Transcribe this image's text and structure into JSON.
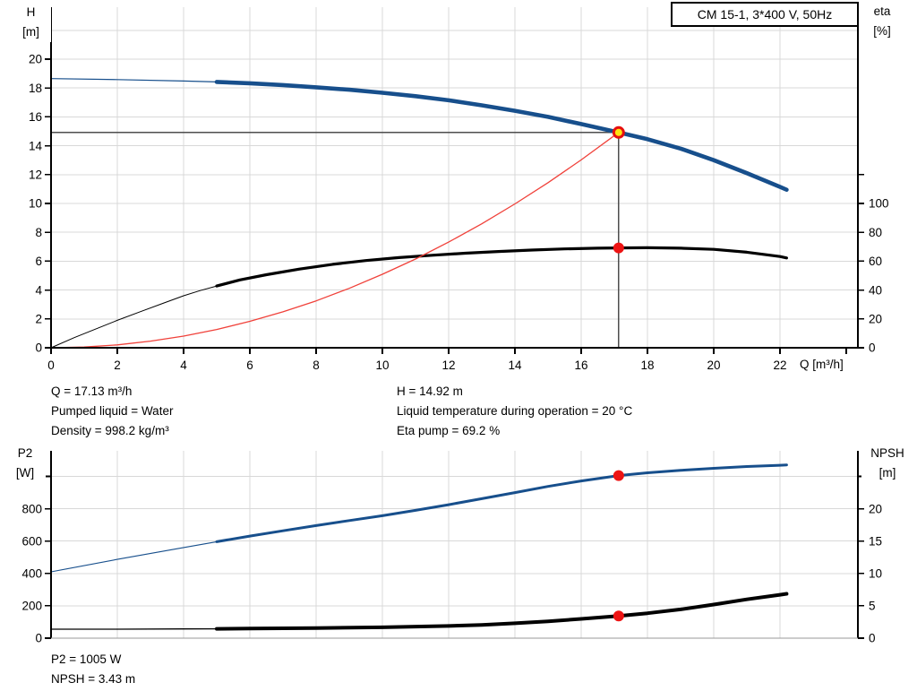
{
  "title_box": {
    "label": "CM 15-1, 3*400 V, 50Hz"
  },
  "axis_corner_labels": {
    "h": {
      "line1": "H",
      "line2": "[m]"
    },
    "eta": {
      "line1": "eta",
      "line2": "[%]"
    },
    "p2": {
      "line1": "P2",
      "line2": "[W]"
    },
    "npsh": {
      "line1": "NPSH",
      "line2": "[m]"
    },
    "q": "Q [m³/h]"
  },
  "annotations": {
    "q_line": "Q = 17.13 m³/h",
    "h_line": "H = 14.92 m",
    "pumped_liquid": "Pumped liquid = Water",
    "liquid_temp": "Liquid temperature during operation = 20 °C",
    "density": "Density = 998.2 kg/m³",
    "eta_pump": "Eta pump = 69.2 %",
    "p2_line": "P2 = 1005 W",
    "npsh_line": "NPSH = 3.43 m"
  },
  "colors": {
    "pump_blue": "#174f8c",
    "curve_black": "#000000",
    "system_red": "#f0413a",
    "marker_red": "#ed1414",
    "duty_ring_red": "#e60f0f",
    "duty_fill_yellow": "#ffe311",
    "grid": "#d8d8d8",
    "ref_line": "#4e4e4e",
    "axis_black": "#000000",
    "axis_gray": "#9a9a9a"
  },
  "duty_point": {
    "q": 17.13,
    "h": 14.92,
    "eta": 69.2,
    "p2": 1005,
    "npsh": 3.43
  },
  "chart_data": [
    {
      "id": "hq",
      "type": "line",
      "title": "CM 15-1, 3*400 V, 50Hz",
      "x": {
        "label": "Q [m³/h]",
        "lim": [
          0,
          24.35
        ],
        "ticks": [
          0,
          2,
          4,
          6,
          8,
          10,
          12,
          14,
          16,
          18,
          20,
          22
        ],
        "extra_ticks": [
          24
        ],
        "grid": [
          2,
          4,
          6,
          8,
          10,
          12,
          14,
          16,
          18,
          20,
          22
        ],
        "show_tick_labels": true,
        "axis_color": "axis_black"
      },
      "y_left": {
        "label": "H [m]",
        "lim": [
          0,
          23.6
        ],
        "ticks": [
          0,
          2,
          4,
          6,
          8,
          10,
          12,
          14,
          16,
          18,
          20
        ],
        "extra_ticks": [
          22
        ],
        "grid": [
          2,
          4,
          6,
          8,
          10,
          12,
          14,
          16,
          18,
          20,
          22
        ]
      },
      "y_right": {
        "label": "eta [%]",
        "ticks": [
          0,
          20,
          40,
          60,
          80,
          100
        ],
        "extra_ticks": [
          120
        ],
        "to_left_factor": 0.1
      },
      "series": [
        {
          "name": "efficiency-curve",
          "axis": "right",
          "color": "curve_black",
          "width": 3.2,
          "thin_width": 1,
          "thick_from": 5,
          "points": [
            [
              0,
              0
            ],
            [
              0.7,
              7
            ],
            [
              1.4,
              13.5
            ],
            [
              2,
              19
            ],
            [
              2.7,
              25
            ],
            [
              3.4,
              31
            ],
            [
              4,
              36
            ],
            [
              4.5,
              39.6
            ],
            [
              5,
              42.8
            ],
            [
              5.7,
              47
            ],
            [
              6.5,
              50.6
            ],
            [
              7.5,
              54.5
            ],
            [
              8.5,
              57.8
            ],
            [
              9.5,
              60.4
            ],
            [
              10.5,
              62.5
            ],
            [
              11.5,
              64.1
            ],
            [
              12.5,
              65.5
            ],
            [
              13.5,
              66.7
            ],
            [
              14.5,
              67.7
            ],
            [
              15.5,
              68.5
            ],
            [
              16.5,
              69.0
            ],
            [
              17.13,
              69.2
            ],
            [
              18,
              69.3
            ],
            [
              19,
              69.0
            ],
            [
              20,
              68.2
            ],
            [
              21,
              66.2
            ],
            [
              22,
              63.2
            ],
            [
              22.2,
              62.2
            ]
          ]
        },
        {
          "name": "system-curve",
          "axis": "left",
          "color": "system_red",
          "width": 1.3,
          "thin_width": 1.3,
          "thick_from": null,
          "points": [
            [
              0,
              0
            ],
            [
              1,
              0.05
            ],
            [
              2,
              0.2
            ],
            [
              3,
              0.46
            ],
            [
              4,
              0.81
            ],
            [
              5,
              1.27
            ],
            [
              6,
              1.83
            ],
            [
              7,
              2.49
            ],
            [
              8,
              3.25
            ],
            [
              9,
              4.12
            ],
            [
              10,
              5.09
            ],
            [
              11,
              6.15
            ],
            [
              12,
              7.32
            ],
            [
              13,
              8.59
            ],
            [
              14,
              9.97
            ],
            [
              15,
              11.44
            ],
            [
              16,
              13.02
            ],
            [
              17.13,
              14.92
            ]
          ]
        },
        {
          "name": "pump-curve",
          "axis": "left",
          "color": "pump_blue",
          "width": 4.6,
          "thin_width": 1.2,
          "thick_from": 5,
          "points": [
            [
              0,
              18.65
            ],
            [
              2,
              18.58
            ],
            [
              4,
              18.48
            ],
            [
              5,
              18.42
            ],
            [
              6,
              18.33
            ],
            [
              7,
              18.2
            ],
            [
              8,
              18.05
            ],
            [
              9,
              17.88
            ],
            [
              10,
              17.67
            ],
            [
              11,
              17.43
            ],
            [
              12,
              17.15
            ],
            [
              13,
              16.8
            ],
            [
              14,
              16.42
            ],
            [
              15,
              16.0
            ],
            [
              16,
              15.5
            ],
            [
              17.13,
              14.92
            ],
            [
              18,
              14.45
            ],
            [
              19,
              13.8
            ],
            [
              20,
              13.0
            ],
            [
              21,
              12.1
            ],
            [
              22,
              11.15
            ],
            [
              22.2,
              10.95
            ]
          ]
        }
      ],
      "reference_lines": [
        {
          "dir": "h",
          "value": 14.92,
          "x1": 0,
          "x2": 17.13
        },
        {
          "dir": "v",
          "at": 17.13,
          "y1": 0,
          "y2": 14.92
        }
      ],
      "markers": [
        {
          "name": "efficiency-point-marker",
          "q": 17.13,
          "value": 69.2,
          "axis": "right",
          "r": 6,
          "fill": "marker_red",
          "stroke": "none",
          "stroke_width": 0,
          "interactable": false
        },
        {
          "name": "duty-point-marker",
          "q": 17.13,
          "value": 14.92,
          "axis": "left",
          "r": 5.5,
          "fill": "duty_fill_yellow",
          "stroke": "duty_ring_red",
          "stroke_width": 3,
          "interactable": true
        }
      ]
    },
    {
      "id": "p2",
      "type": "line",
      "title": "",
      "x": {
        "label": "",
        "lim": [
          0,
          24.35
        ],
        "ticks": [],
        "extra_ticks": [],
        "grid": [
          2,
          4,
          6,
          8,
          10,
          12,
          14,
          16,
          18,
          20,
          22
        ],
        "show_tick_labels": false,
        "axis_color": "axis_gray"
      },
      "y_left": {
        "label": "P2 [W]",
        "lim": [
          0,
          1158
        ],
        "ticks": [
          0,
          200,
          400,
          600,
          800
        ],
        "extra_ticks": [
          1000
        ],
        "grid": [
          200,
          400,
          600,
          800,
          1000
        ]
      },
      "y_right": {
        "label": "NPSH [m]",
        "ticks": [
          0,
          5,
          10,
          15,
          20
        ],
        "extra_ticks": [
          25
        ],
        "to_left_factor": 40
      },
      "series": [
        {
          "name": "power-curve",
          "axis": "left",
          "color": "pump_blue",
          "width": 3,
          "thin_width": 1.1,
          "thick_from": 5,
          "points": [
            [
              0,
              410
            ],
            [
              2,
              487
            ],
            [
              4,
              560
            ],
            [
              5,
              596
            ],
            [
              6,
              631
            ],
            [
              7,
              664
            ],
            [
              8,
              696
            ],
            [
              9,
              727
            ],
            [
              10,
              757
            ],
            [
              11,
              790
            ],
            [
              12,
              825
            ],
            [
              13,
              862
            ],
            [
              14,
              900
            ],
            [
              15,
              938
            ],
            [
              16,
              972
            ],
            [
              17.13,
              1005
            ],
            [
              18,
              1022
            ],
            [
              19,
              1037
            ],
            [
              20,
              1050
            ],
            [
              21,
              1061
            ],
            [
              22,
              1069
            ],
            [
              22.2,
              1071
            ]
          ]
        },
        {
          "name": "npsh-curve",
          "axis": "right",
          "color": "curve_black",
          "width": 4,
          "thin_width": 1.3,
          "thick_from": 5,
          "points": [
            [
              0,
              1.38
            ],
            [
              2,
              1.39
            ],
            [
              4,
              1.42
            ],
            [
              5,
              1.44
            ],
            [
              6,
              1.48
            ],
            [
              8,
              1.56
            ],
            [
              10,
              1.68
            ],
            [
              12,
              1.88
            ],
            [
              13,
              2.05
            ],
            [
              14,
              2.3
            ],
            [
              15,
              2.6
            ],
            [
              16,
              2.98
            ],
            [
              17.13,
              3.43
            ],
            [
              18,
              3.85
            ],
            [
              19,
              4.45
            ],
            [
              20,
              5.2
            ],
            [
              21,
              6.0
            ],
            [
              22,
              6.7
            ],
            [
              22.2,
              6.85
            ]
          ]
        }
      ],
      "reference_lines": [],
      "markers": [
        {
          "name": "power-point-marker",
          "q": 17.13,
          "value": 1005,
          "axis": "left",
          "r": 6,
          "fill": "marker_red",
          "stroke": "none",
          "stroke_width": 0,
          "interactable": false
        },
        {
          "name": "npsh-point-marker",
          "q": 17.13,
          "value": 3.43,
          "axis": "right",
          "r": 6,
          "fill": "marker_red",
          "stroke": "none",
          "stroke_width": 0,
          "interactable": false
        }
      ]
    }
  ]
}
